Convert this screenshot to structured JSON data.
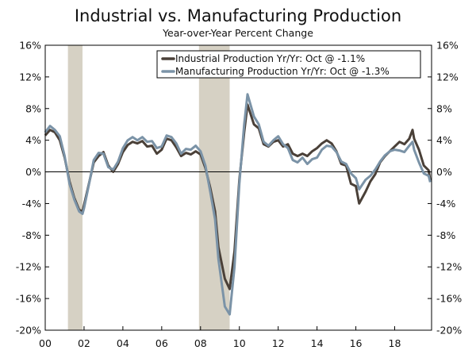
{
  "chart_data": {
    "type": "line",
    "title": "Industrial vs. Manufacturing Production",
    "subtitle": "Year-over-Year Percent Change",
    "x_ticks": [
      "00",
      "02",
      "04",
      "06",
      "08",
      "10",
      "12",
      "14",
      "16",
      "18"
    ],
    "x_tick_years": [
      2000,
      2002,
      2004,
      2006,
      2008,
      2010,
      2012,
      2014,
      2016,
      2018
    ],
    "xlim": [
      2000.0,
      2019.9
    ],
    "ylim": [
      -20,
      16
    ],
    "y_ticks": [
      16,
      12,
      8,
      4,
      0,
      -4,
      -8,
      -12,
      -16,
      -20
    ],
    "y_tick_labels": [
      "16%",
      "12%",
      "8%",
      "4%",
      "0%",
      "-4%",
      "-8%",
      "-12%",
      "-16%",
      "-20%"
    ],
    "recessions": [
      {
        "start": 2001.17,
        "end": 2001.92
      },
      {
        "start": 2007.92,
        "end": 2009.5
      }
    ],
    "legend": {
      "position": "top-right",
      "entries": [
        "Industrial Production Yr/Yr: Oct @ -1.1%",
        "Manufacturing Production Yr/Yr: Oct @ -1.3%"
      ]
    },
    "series": [
      {
        "name": "Industrial Production Yr/Yr: Oct @ -1.1%",
        "color": "#4a4038",
        "points": [
          [
            2000.0,
            4.6
          ],
          [
            2000.25,
            5.3
          ],
          [
            2000.5,
            5.0
          ],
          [
            2000.75,
            4.0
          ],
          [
            2001.0,
            1.8
          ],
          [
            2001.25,
            -1.2
          ],
          [
            2001.5,
            -3.3
          ],
          [
            2001.75,
            -4.8
          ],
          [
            2001.92,
            -5.0
          ],
          [
            2002.0,
            -4.2
          ],
          [
            2002.25,
            -1.5
          ],
          [
            2002.5,
            1.2
          ],
          [
            2002.75,
            2.0
          ],
          [
            2003.0,
            2.5
          ],
          [
            2003.25,
            0.8
          ],
          [
            2003.5,
            0.0
          ],
          [
            2003.75,
            1.0
          ],
          [
            2004.0,
            2.5
          ],
          [
            2004.25,
            3.4
          ],
          [
            2004.5,
            3.8
          ],
          [
            2004.75,
            3.6
          ],
          [
            2005.0,
            3.9
          ],
          [
            2005.25,
            3.2
          ],
          [
            2005.5,
            3.3
          ],
          [
            2005.75,
            2.3
          ],
          [
            2006.0,
            2.8
          ],
          [
            2006.25,
            4.2
          ],
          [
            2006.5,
            4.0
          ],
          [
            2006.75,
            3.1
          ],
          [
            2007.0,
            2.0
          ],
          [
            2007.25,
            2.4
          ],
          [
            2007.5,
            2.2
          ],
          [
            2007.75,
            2.6
          ],
          [
            2008.0,
            2.2
          ],
          [
            2008.25,
            0.5
          ],
          [
            2008.5,
            -2.0
          ],
          [
            2008.75,
            -5.0
          ],
          [
            2008.92,
            -9.5
          ],
          [
            2009.25,
            -13.5
          ],
          [
            2009.5,
            -14.8
          ],
          [
            2009.75,
            -10.0
          ],
          [
            2010.0,
            -1.0
          ],
          [
            2010.25,
            5.0
          ],
          [
            2010.42,
            8.5
          ],
          [
            2010.75,
            6.0
          ],
          [
            2011.0,
            5.5
          ],
          [
            2011.25,
            3.5
          ],
          [
            2011.5,
            3.2
          ],
          [
            2011.75,
            3.8
          ],
          [
            2012.0,
            4.0
          ],
          [
            2012.25,
            3.2
          ],
          [
            2012.5,
            3.5
          ],
          [
            2012.75,
            2.3
          ],
          [
            2013.0,
            2.0
          ],
          [
            2013.25,
            2.3
          ],
          [
            2013.5,
            2.0
          ],
          [
            2013.75,
            2.6
          ],
          [
            2014.0,
            3.0
          ],
          [
            2014.25,
            3.6
          ],
          [
            2014.5,
            4.0
          ],
          [
            2014.75,
            3.6
          ],
          [
            2015.0,
            2.6
          ],
          [
            2015.25,
            1.0
          ],
          [
            2015.5,
            0.8
          ],
          [
            2015.75,
            -1.5
          ],
          [
            2016.0,
            -1.8
          ],
          [
            2016.17,
            -4.0
          ],
          [
            2016.5,
            -2.5
          ],
          [
            2016.75,
            -1.2
          ],
          [
            2017.0,
            -0.3
          ],
          [
            2017.25,
            1.2
          ],
          [
            2017.5,
            2.0
          ],
          [
            2017.75,
            2.6
          ],
          [
            2018.0,
            3.2
          ],
          [
            2018.25,
            3.8
          ],
          [
            2018.5,
            3.5
          ],
          [
            2018.75,
            4.2
          ],
          [
            2018.92,
            5.3
          ],
          [
            2019.0,
            4.2
          ],
          [
            2019.25,
            2.8
          ],
          [
            2019.5,
            0.8
          ],
          [
            2019.75,
            0.2
          ],
          [
            2019.83,
            -1.1
          ]
        ]
      },
      {
        "name": "Manufacturing Production Yr/Yr: Oct @ -1.3%",
        "color": "#7b93a7",
        "points": [
          [
            2000.0,
            5.0
          ],
          [
            2000.25,
            5.8
          ],
          [
            2000.5,
            5.3
          ],
          [
            2000.75,
            4.5
          ],
          [
            2001.0,
            2.0
          ],
          [
            2001.25,
            -1.5
          ],
          [
            2001.5,
            -3.5
          ],
          [
            2001.75,
            -5.0
          ],
          [
            2001.92,
            -5.3
          ],
          [
            2002.0,
            -4.6
          ],
          [
            2002.25,
            -1.6
          ],
          [
            2002.5,
            1.5
          ],
          [
            2002.75,
            2.4
          ],
          [
            2003.0,
            2.3
          ],
          [
            2003.25,
            0.6
          ],
          [
            2003.5,
            0.3
          ],
          [
            2003.75,
            1.3
          ],
          [
            2004.0,
            3.0
          ],
          [
            2004.25,
            4.0
          ],
          [
            2004.5,
            4.4
          ],
          [
            2004.75,
            4.0
          ],
          [
            2005.0,
            4.4
          ],
          [
            2005.25,
            3.8
          ],
          [
            2005.5,
            3.9
          ],
          [
            2005.75,
            3.0
          ],
          [
            2006.0,
            3.2
          ],
          [
            2006.25,
            4.6
          ],
          [
            2006.5,
            4.4
          ],
          [
            2006.75,
            3.6
          ],
          [
            2007.0,
            2.3
          ],
          [
            2007.25,
            2.9
          ],
          [
            2007.5,
            2.8
          ],
          [
            2007.75,
            3.3
          ],
          [
            2008.0,
            2.6
          ],
          [
            2008.25,
            0.8
          ],
          [
            2008.5,
            -2.5
          ],
          [
            2008.75,
            -6.0
          ],
          [
            2008.92,
            -11.0
          ],
          [
            2009.25,
            -17.0
          ],
          [
            2009.5,
            -18.0
          ],
          [
            2009.75,
            -12.0
          ],
          [
            2010.0,
            -1.5
          ],
          [
            2010.25,
            6.0
          ],
          [
            2010.42,
            9.8
          ],
          [
            2010.75,
            7.0
          ],
          [
            2011.0,
            6.0
          ],
          [
            2011.25,
            3.8
          ],
          [
            2011.5,
            3.3
          ],
          [
            2011.75,
            4.0
          ],
          [
            2012.0,
            4.5
          ],
          [
            2012.25,
            3.5
          ],
          [
            2012.5,
            3.0
          ],
          [
            2012.75,
            1.5
          ],
          [
            2013.0,
            1.2
          ],
          [
            2013.25,
            1.8
          ],
          [
            2013.5,
            1.0
          ],
          [
            2013.75,
            1.6
          ],
          [
            2014.0,
            1.8
          ],
          [
            2014.25,
            2.8
          ],
          [
            2014.5,
            3.3
          ],
          [
            2014.75,
            3.2
          ],
          [
            2015.0,
            2.5
          ],
          [
            2015.25,
            1.3
          ],
          [
            2015.5,
            1.0
          ],
          [
            2015.75,
            -0.2
          ],
          [
            2016.0,
            -0.8
          ],
          [
            2016.17,
            -2.2
          ],
          [
            2016.5,
            -1.0
          ],
          [
            2016.75,
            -0.5
          ],
          [
            2017.0,
            0.3
          ],
          [
            2017.25,
            1.3
          ],
          [
            2017.5,
            2.1
          ],
          [
            2017.75,
            2.6
          ],
          [
            2018.0,
            2.8
          ],
          [
            2018.25,
            2.7
          ],
          [
            2018.5,
            2.5
          ],
          [
            2018.75,
            3.3
          ],
          [
            2018.92,
            3.8
          ],
          [
            2019.0,
            2.8
          ],
          [
            2019.25,
            1.2
          ],
          [
            2019.5,
            -0.2
          ],
          [
            2019.75,
            -0.5
          ],
          [
            2019.83,
            -1.3
          ]
        ]
      }
    ]
  }
}
